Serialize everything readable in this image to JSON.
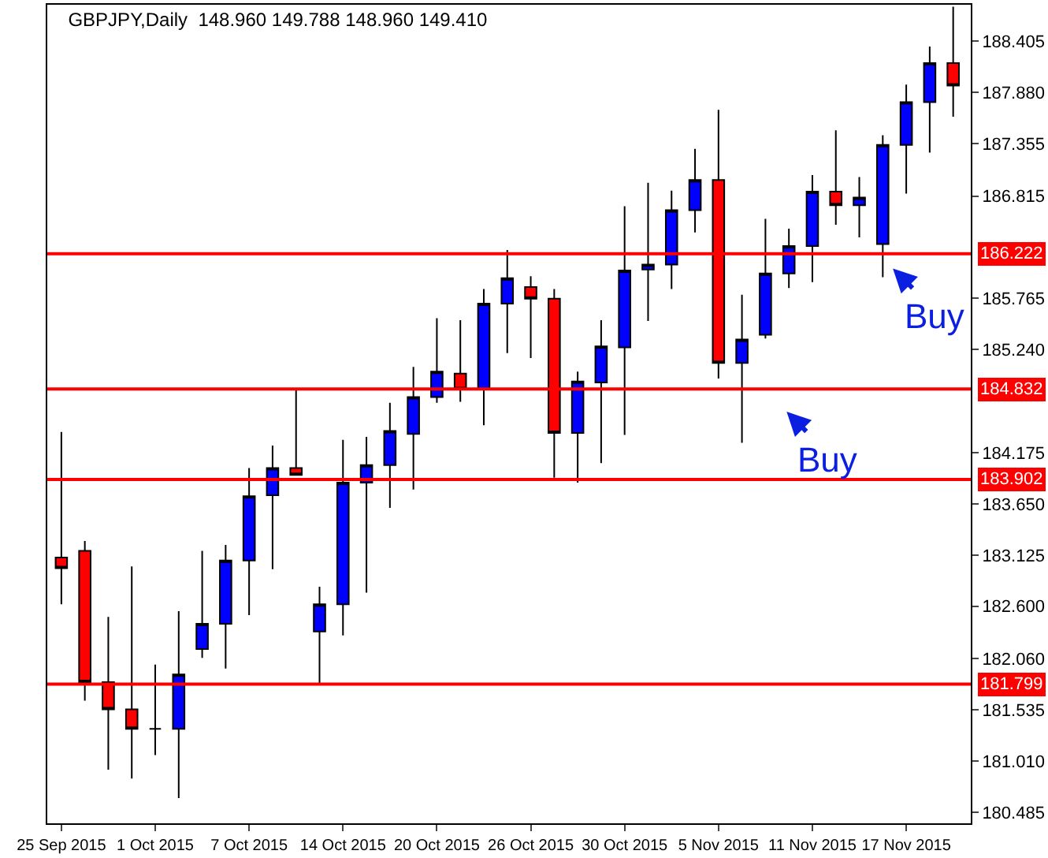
{
  "chart_data": {
    "type": "candlestick",
    "title": "GBPJPY,Daily  148.960 149.788 148.960 149.410",
    "categories": [
      "25 Sep 2015",
      null,
      null,
      null,
      "1 Oct 2015",
      null,
      null,
      null,
      "7 Oct 2015",
      null,
      null,
      null,
      "14 Oct 2015",
      null,
      null,
      null,
      "20 Oct 2015",
      null,
      null,
      null,
      "26 Oct 2015",
      null,
      null,
      null,
      "30 Oct 2015",
      null,
      null,
      null,
      "5 Nov 2015",
      null,
      null,
      null,
      "11 Nov 2015",
      null,
      null,
      null,
      "17 Nov 2015",
      null,
      null
    ],
    "ohlc": [
      [
        183.1,
        184.39,
        182.62,
        182.99
      ],
      [
        183.17,
        183.27,
        181.63,
        181.82
      ],
      [
        181.82,
        182.49,
        180.92,
        181.54
      ],
      [
        181.54,
        183.01,
        180.83,
        181.34
      ],
      [
        181.34,
        182.0,
        181.07,
        181.34
      ],
      [
        181.34,
        182.55,
        180.63,
        181.9
      ],
      [
        182.16,
        183.17,
        182.07,
        182.42
      ],
      [
        182.42,
        183.23,
        181.96,
        183.07
      ],
      [
        183.07,
        184.02,
        182.51,
        183.73
      ],
      [
        183.74,
        184.25,
        182.98,
        184.02
      ],
      [
        184.02,
        184.83,
        183.95,
        183.95
      ],
      [
        182.34,
        182.8,
        181.8,
        182.62
      ],
      [
        182.62,
        184.31,
        182.3,
        183.87
      ],
      [
        183.87,
        184.34,
        182.74,
        184.05
      ],
      [
        184.05,
        184.69,
        183.61,
        184.4
      ],
      [
        184.37,
        185.06,
        183.8,
        184.75
      ],
      [
        184.75,
        185.56,
        184.69,
        185.01
      ],
      [
        184.99,
        185.54,
        184.7,
        184.83
      ],
      [
        184.83,
        185.86,
        184.46,
        185.71
      ],
      [
        185.71,
        186.26,
        185.2,
        185.97
      ],
      [
        185.88,
        185.99,
        185.15,
        185.76
      ],
      [
        185.76,
        185.86,
        183.92,
        184.38
      ],
      [
        184.38,
        185.01,
        183.87,
        184.91
      ],
      [
        184.9,
        185.54,
        184.07,
        185.27
      ],
      [
        185.26,
        186.71,
        184.36,
        186.05
      ],
      [
        186.06,
        186.95,
        185.53,
        186.11
      ],
      [
        186.11,
        186.87,
        185.86,
        186.67
      ],
      [
        186.67,
        187.3,
        186.44,
        186.98
      ],
      [
        186.98,
        187.7,
        184.94,
        185.1
      ],
      [
        185.1,
        185.8,
        184.28,
        185.34
      ],
      [
        185.39,
        186.58,
        185.35,
        186.02
      ],
      [
        186.02,
        186.48,
        185.87,
        186.3
      ],
      [
        186.3,
        187.03,
        185.93,
        186.86
      ],
      [
        186.86,
        187.49,
        186.52,
        186.72
      ],
      [
        186.72,
        187.01,
        186.39,
        186.8
      ],
      [
        186.32,
        187.44,
        185.98,
        187.34
      ],
      [
        187.34,
        187.96,
        186.84,
        187.78
      ],
      [
        187.78,
        188.35,
        187.26,
        188.18
      ],
      [
        188.18,
        188.76,
        187.63,
        187.95
      ]
    ],
    "colors": [
      "#ff0000",
      "#ff0000",
      "#ff0000",
      "#ff0000",
      "#000000",
      "#0000ff",
      "#0000ff",
      "#0000ff",
      "#0000ff",
      "#0000ff",
      "#ff0000",
      "#0000ff",
      "#0000ff",
      "#0000ff",
      "#0000ff",
      "#0000ff",
      "#0000ff",
      "#ff0000",
      "#0000ff",
      "#0000ff",
      "#ff0000",
      "#ff0000",
      "#0000ff",
      "#0000ff",
      "#0000ff",
      "#0000ff",
      "#0000ff",
      "#0000ff",
      "#ff0000",
      "#0000ff",
      "#0000ff",
      "#0000ff",
      "#0000ff",
      "#ff0000",
      "#0000ff",
      "#0000ff",
      "#0000ff",
      "#0000ff",
      "#ff0000"
    ],
    "ylim": [
      180.37,
      188.78
    ],
    "yticks": [
      188.405,
      {
        "value": 187.88,
        "label": "187.880"
      },
      187.355,
      186.815,
      185.765,
      {
        "value": 185.24,
        "label": "185.240"
      },
      184.175,
      {
        "value": 183.65,
        "label": "183.650"
      },
      183.125,
      {
        "value": 182.6,
        "label": "182.600"
      },
      {
        "value": 182.06,
        "label": "182.060"
      },
      181.535,
      {
        "value": 181.01,
        "label": "181.010"
      },
      180.485
    ],
    "ref_lines": [
      {
        "axis": "y",
        "value": 186.222,
        "label": "186.222",
        "color": "#ff0000"
      },
      {
        "axis": "y",
        "value": 184.832,
        "label": "184.832",
        "color": "#ff0000"
      },
      {
        "axis": "y",
        "value": 183.902,
        "label": "183.902",
        "color": "#ff0000"
      },
      {
        "axis": "y",
        "value": 181.799,
        "label": "181.799",
        "color": "#ff0000"
      }
    ],
    "annotations": [
      "Buy",
      "Buy"
    ],
    "legend": false
  }
}
